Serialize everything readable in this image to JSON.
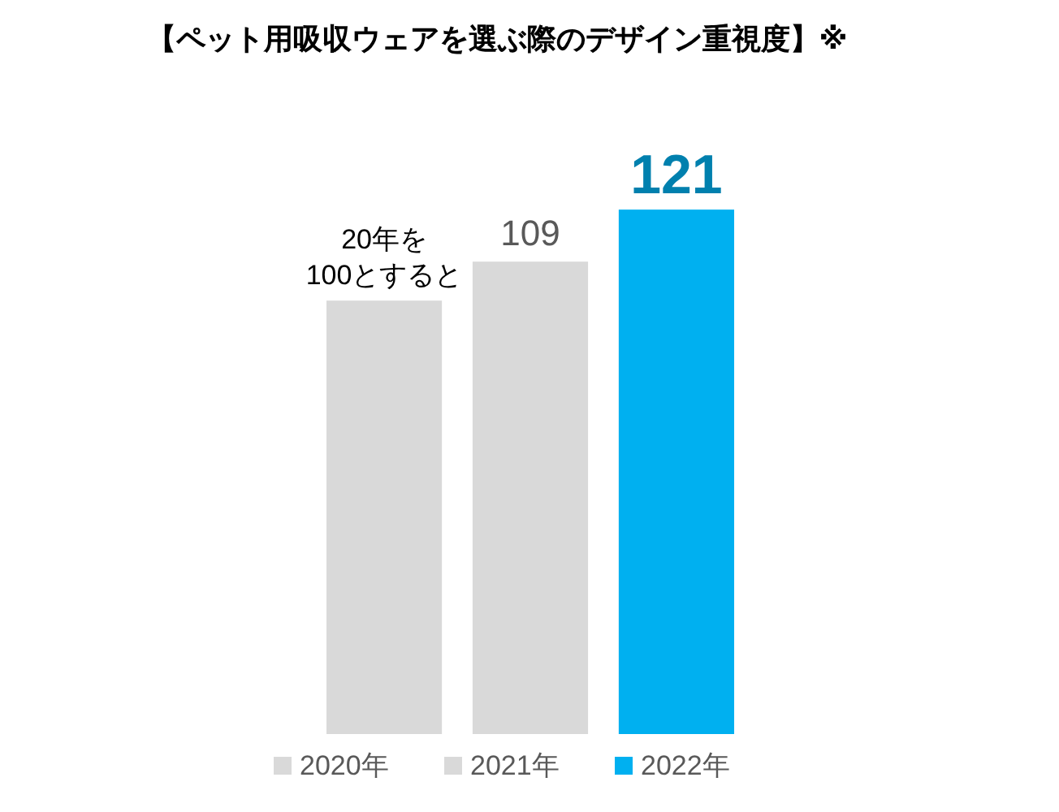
{
  "chart_data": {
    "type": "bar",
    "title": "【ペット用吸収ウェアを選ぶ際のデザイン重視度】※",
    "categories": [
      null,
      null,
      null
    ],
    "stacked": true,
    "legend": "bottom",
    "series": [
      {
        "name": "2020年",
        "color": "#d9d9d9",
        "values": [
          100,
          null,
          null
        ],
        "value_labels": [
          "20年を\n100とすると",
          null,
          null
        ]
      },
      {
        "name": "2021年",
        "color": "#d9d9d9",
        "values": [
          null,
          109,
          null
        ],
        "value_labels": [
          null,
          "109",
          null
        ]
      },
      {
        "name": "2022年",
        "color": "#00b0f0",
        "values": [
          null,
          null,
          121
        ],
        "value_labels": [
          null,
          null,
          "121"
        ]
      }
    ]
  }
}
